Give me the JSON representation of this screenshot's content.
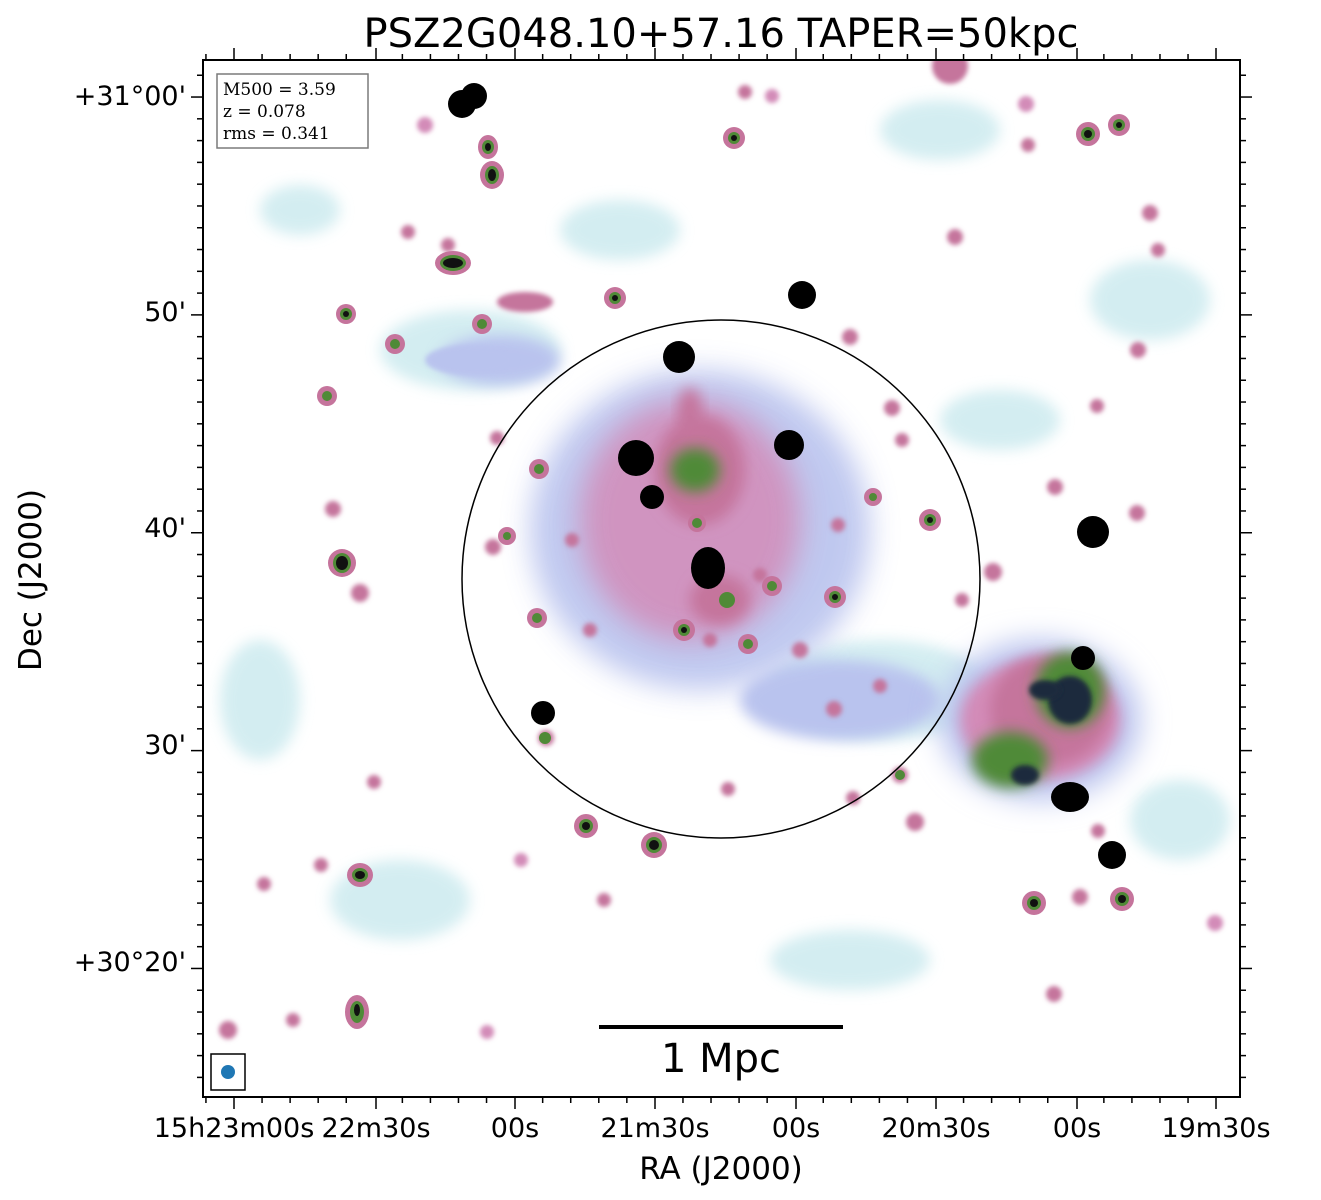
{
  "chart_data": {
    "type": "heatmap",
    "title": "PSZ2G048.10+57.16 TAPER=50kpc",
    "xlabel": "RA (J2000)",
    "ylabel": "Dec (J2000)",
    "x_tick_labels": [
      "15h23m00s",
      "22m30s",
      "00s",
      "21m30s",
      "00s",
      "20m30s",
      "00s",
      "19m30s"
    ],
    "y_tick_labels": [
      "+30°20'",
      "30'",
      "40'",
      "50'",
      "+31°00'"
    ],
    "y_ticks_arcmin": [
      20,
      30,
      40,
      50,
      60
    ],
    "ylim_arcmin": [
      14.1,
      61.7
    ],
    "colormap": "cubehelix (light blue → pink → green → black)",
    "annotations": {
      "info_box": [
        "M500 = 3.59",
        "z = 0.078",
        "rms = 0.341"
      ],
      "scale_bar": "1 Mpc",
      "beam_marker": "beam ellipse (bottom-left)",
      "circle": "R500 circle around cluster centre"
    },
    "colors": {
      "faint": "#c9e9ee",
      "low": "#b9c3ee",
      "mid": "#d38bb8",
      "pink": "#c5749c",
      "high": "#4f8a37",
      "peak": "#000000",
      "beam": "#1f77b4"
    }
  }
}
